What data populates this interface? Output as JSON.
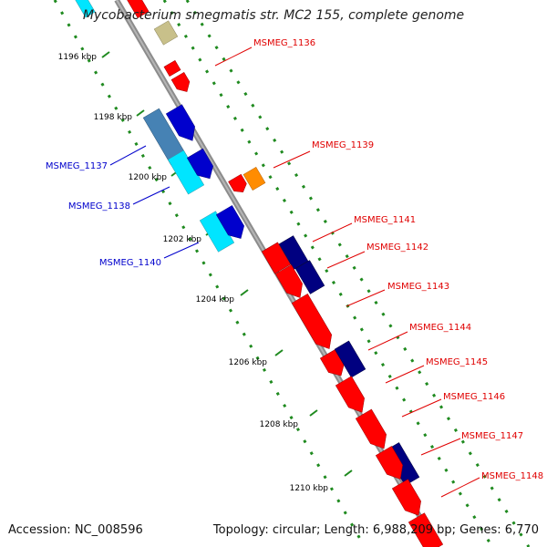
{
  "title": "Mycobacterium smegmatis str. MC2 155, complete genome",
  "footer": {
    "accession": "Accession: NC_008596",
    "summary": "Topology: circular; Length: 6,988,209 bp; Genes: 6,770"
  },
  "colors": {
    "backbone": "#8c8c8c",
    "tick_dots": "#1f8a1f",
    "forward_label": "#e00000",
    "reverse_label": "#0000cc",
    "gene_red": "#ff0000",
    "gene_navy": "#000080",
    "gene_blue": "#0000cd",
    "gene_cyan": "#00e5ff",
    "gene_steelblue": "#4682b4",
    "gene_orange": "#ff8c00",
    "gene_khaki": "#c8c08a"
  },
  "ticks": [
    "1196 kbp",
    "1198 kbp",
    "1200 kbp",
    "1202 kbp",
    "1204 kbp",
    "1206 kbp",
    "1208 kbp",
    "1210 kbp"
  ],
  "forward_genes": [
    "MSMEG_1136",
    "MSMEG_1139",
    "MSMEG_1141",
    "MSMEG_1142",
    "MSMEG_1143",
    "MSMEG_1144",
    "MSMEG_1145",
    "MSMEG_1146",
    "MSMEG_1147",
    "MSMEG_1148"
  ],
  "reverse_genes": [
    "MSMEG_1137",
    "MSMEG_1138",
    "MSMEG_1140"
  ]
}
